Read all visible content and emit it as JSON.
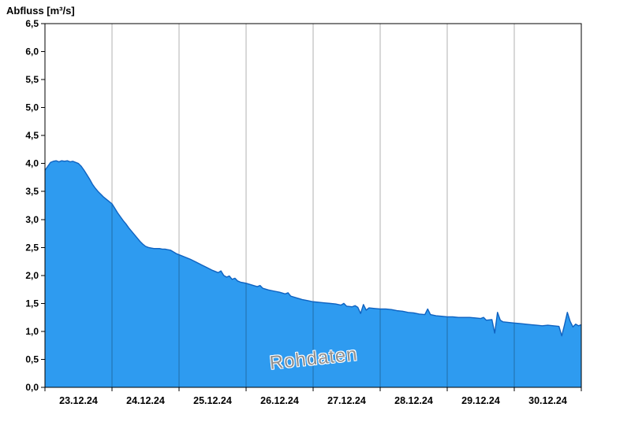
{
  "title": "Abfluss [m³/s]",
  "watermark": "Rohdaten",
  "chart_data": {
    "type": "area",
    "title": "Abfluss [m³/s]",
    "ylabel": "Abfluss [m³/s]",
    "xlabel": "",
    "ylim": [
      0,
      6.5
    ],
    "ytick_step": 0.5,
    "ytick_labels": [
      "0,0",
      "0,5",
      "1,0",
      "1,5",
      "2,0",
      "2,5",
      "3,0",
      "3,5",
      "4,0",
      "4,5",
      "5,0",
      "5,5",
      "6,0",
      "6,5"
    ],
    "xlim_hours": [
      0,
      192
    ],
    "day_labels": [
      "23.12.24",
      "24.12.24",
      "25.12.24",
      "26.12.24",
      "27.12.24",
      "28.12.24",
      "29.12.24",
      "30.12.24"
    ],
    "grid": "vertical lines at day boundaries, no horizontal gridlines",
    "legend": "none",
    "annotations": [
      "Rohdaten"
    ],
    "colors": {
      "fill": "#2e9bf0",
      "stroke": "#0f62c0",
      "grid": "rgba(0,0,0,0.30)",
      "axis": "#000000",
      "background": "#ffffff"
    },
    "series": [
      {
        "name": "Abfluss Rohdaten",
        "points": [
          [
            0,
            3.88
          ],
          [
            1,
            3.95
          ],
          [
            2,
            4.02
          ],
          [
            3,
            4.04
          ],
          [
            4,
            4.05
          ],
          [
            5,
            4.03
          ],
          [
            6,
            4.05
          ],
          [
            7,
            4.04
          ],
          [
            8,
            4.05
          ],
          [
            9,
            4.03
          ],
          [
            10,
            4.04
          ],
          [
            11,
            4.02
          ],
          [
            12,
            4.0
          ],
          [
            13,
            3.95
          ],
          [
            14,
            3.88
          ],
          [
            15,
            3.8
          ],
          [
            16,
            3.72
          ],
          [
            17,
            3.63
          ],
          [
            18,
            3.56
          ],
          [
            19,
            3.5
          ],
          [
            20,
            3.45
          ],
          [
            21,
            3.4
          ],
          [
            22,
            3.36
          ],
          [
            23,
            3.32
          ],
          [
            24,
            3.28
          ],
          [
            25,
            3.2
          ],
          [
            26,
            3.12
          ],
          [
            27,
            3.05
          ],
          [
            28,
            2.98
          ],
          [
            29,
            2.92
          ],
          [
            30,
            2.85
          ],
          [
            31,
            2.79
          ],
          [
            32,
            2.73
          ],
          [
            33,
            2.67
          ],
          [
            34,
            2.61
          ],
          [
            35,
            2.56
          ],
          [
            36,
            2.52
          ],
          [
            37,
            2.5
          ],
          [
            38,
            2.49
          ],
          [
            39,
            2.48
          ],
          [
            40,
            2.48
          ],
          [
            41,
            2.48
          ],
          [
            42,
            2.47
          ],
          [
            43,
            2.47
          ],
          [
            44,
            2.46
          ],
          [
            45,
            2.45
          ],
          [
            46,
            2.42
          ],
          [
            47,
            2.39
          ],
          [
            48,
            2.37
          ],
          [
            50,
            2.33
          ],
          [
            52,
            2.29
          ],
          [
            54,
            2.24
          ],
          [
            56,
            2.19
          ],
          [
            58,
            2.14
          ],
          [
            60,
            2.09
          ],
          [
            62,
            2.05
          ],
          [
            63,
            2.08
          ],
          [
            64,
            2.0
          ],
          [
            65,
            1.97
          ],
          [
            66,
            1.99
          ],
          [
            67,
            1.93
          ],
          [
            68,
            1.95
          ],
          [
            69,
            1.9
          ],
          [
            70,
            1.88
          ],
          [
            71,
            1.87
          ],
          [
            72,
            1.86
          ],
          [
            74,
            1.83
          ],
          [
            76,
            1.8
          ],
          [
            77,
            1.82
          ],
          [
            78,
            1.77
          ],
          [
            80,
            1.74
          ],
          [
            82,
            1.72
          ],
          [
            84,
            1.7
          ],
          [
            86,
            1.67
          ],
          [
            87,
            1.69
          ],
          [
            88,
            1.63
          ],
          [
            90,
            1.6
          ],
          [
            92,
            1.57
          ],
          [
            94,
            1.55
          ],
          [
            96,
            1.53
          ],
          [
            98,
            1.52
          ],
          [
            100,
            1.51
          ],
          [
            102,
            1.5
          ],
          [
            104,
            1.49
          ],
          [
            106,
            1.47
          ],
          [
            107,
            1.5
          ],
          [
            108,
            1.45
          ],
          [
            110,
            1.44
          ],
          [
            111,
            1.46
          ],
          [
            112,
            1.43
          ],
          [
            113,
            1.32
          ],
          [
            114,
            1.48
          ],
          [
            115,
            1.38
          ],
          [
            116,
            1.42
          ],
          [
            118,
            1.41
          ],
          [
            120,
            1.4
          ],
          [
            122,
            1.4
          ],
          [
            124,
            1.39
          ],
          [
            126,
            1.37
          ],
          [
            128,
            1.36
          ],
          [
            130,
            1.34
          ],
          [
            132,
            1.33
          ],
          [
            134,
            1.31
          ],
          [
            136,
            1.3
          ],
          [
            137,
            1.4
          ],
          [
            138,
            1.3
          ],
          [
            140,
            1.28
          ],
          [
            142,
            1.27
          ],
          [
            144,
            1.26
          ],
          [
            146,
            1.26
          ],
          [
            148,
            1.25
          ],
          [
            150,
            1.25
          ],
          [
            152,
            1.25
          ],
          [
            154,
            1.24
          ],
          [
            156,
            1.23
          ],
          [
            157,
            1.25
          ],
          [
            158,
            1.2
          ],
          [
            160,
            1.21
          ],
          [
            161,
            0.97
          ],
          [
            162,
            1.34
          ],
          [
            163,
            1.2
          ],
          [
            164,
            1.17
          ],
          [
            166,
            1.16
          ],
          [
            168,
            1.15
          ],
          [
            170,
            1.14
          ],
          [
            172,
            1.13
          ],
          [
            174,
            1.12
          ],
          [
            176,
            1.11
          ],
          [
            178,
            1.1
          ],
          [
            180,
            1.11
          ],
          [
            182,
            1.1
          ],
          [
            184,
            1.09
          ],
          [
            185,
            0.92
          ],
          [
            186,
            1.12
          ],
          [
            187,
            1.34
          ],
          [
            188,
            1.18
          ],
          [
            189,
            1.08
          ],
          [
            190,
            1.13
          ],
          [
            191,
            1.1
          ],
          [
            192,
            1.12
          ]
        ]
      }
    ]
  }
}
